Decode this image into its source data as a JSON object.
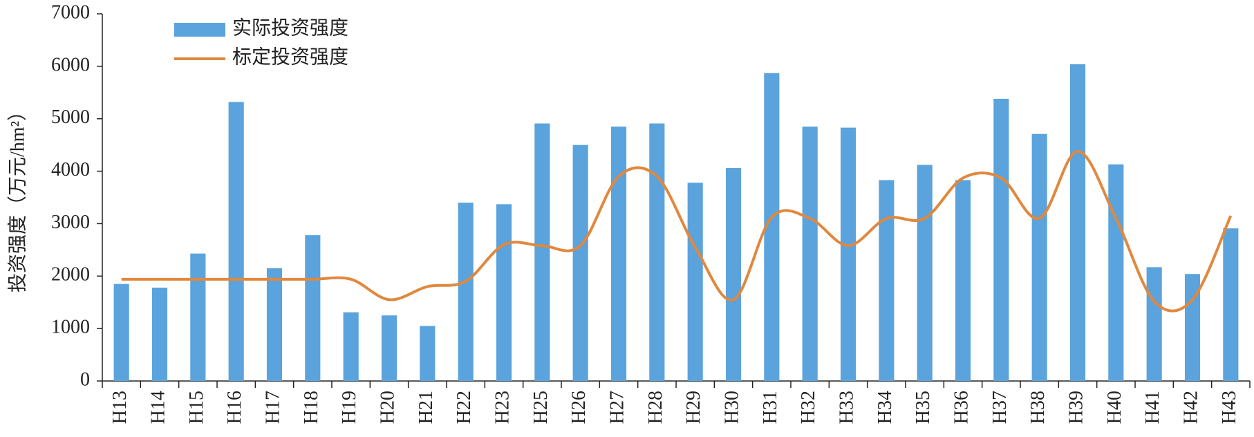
{
  "chart_data": {
    "type": "bar-line",
    "y_label": "投资强度（万元/hm²）",
    "categories": [
      "H13",
      "H14",
      "H15",
      "H16",
      "H17",
      "H18",
      "H19",
      "H20",
      "H21",
      "H22",
      "H23",
      "H25",
      "H26",
      "H27",
      "H28",
      "H29",
      "H30",
      "H31",
      "H32",
      "H33",
      "H34",
      "H35",
      "H36",
      "H37",
      "H38",
      "H39",
      "H40",
      "H41",
      "H42",
      "H43"
    ],
    "series": [
      {
        "name": "实际投资强度",
        "kind": "bar",
        "color": "#5ba3dc",
        "values": [
          1850,
          1780,
          2430,
          5320,
          2150,
          2780,
          1310,
          1250,
          1050,
          3400,
          3370,
          4910,
          4500,
          4850,
          4910,
          3780,
          4060,
          5870,
          4850,
          4830,
          3830,
          4120,
          3830,
          5380,
          4710,
          6040,
          4130,
          2170,
          2040,
          2910
        ]
      },
      {
        "name": "标定投资强度",
        "kind": "line",
        "color": "#e0883e",
        "values": [
          1940,
          1940,
          1940,
          1940,
          1940,
          1940,
          1940,
          1550,
          1800,
          1900,
          2600,
          2580,
          2580,
          3900,
          3900,
          2550,
          1550,
          3120,
          3100,
          2580,
          3100,
          3100,
          3870,
          3870,
          3100,
          4380,
          3100,
          1520,
          1550,
          3150
        ]
      }
    ],
    "ylim": [
      0,
      7000
    ],
    "yticks": [
      0,
      1000,
      2000,
      3000,
      4000,
      5000,
      6000,
      7000
    ]
  }
}
